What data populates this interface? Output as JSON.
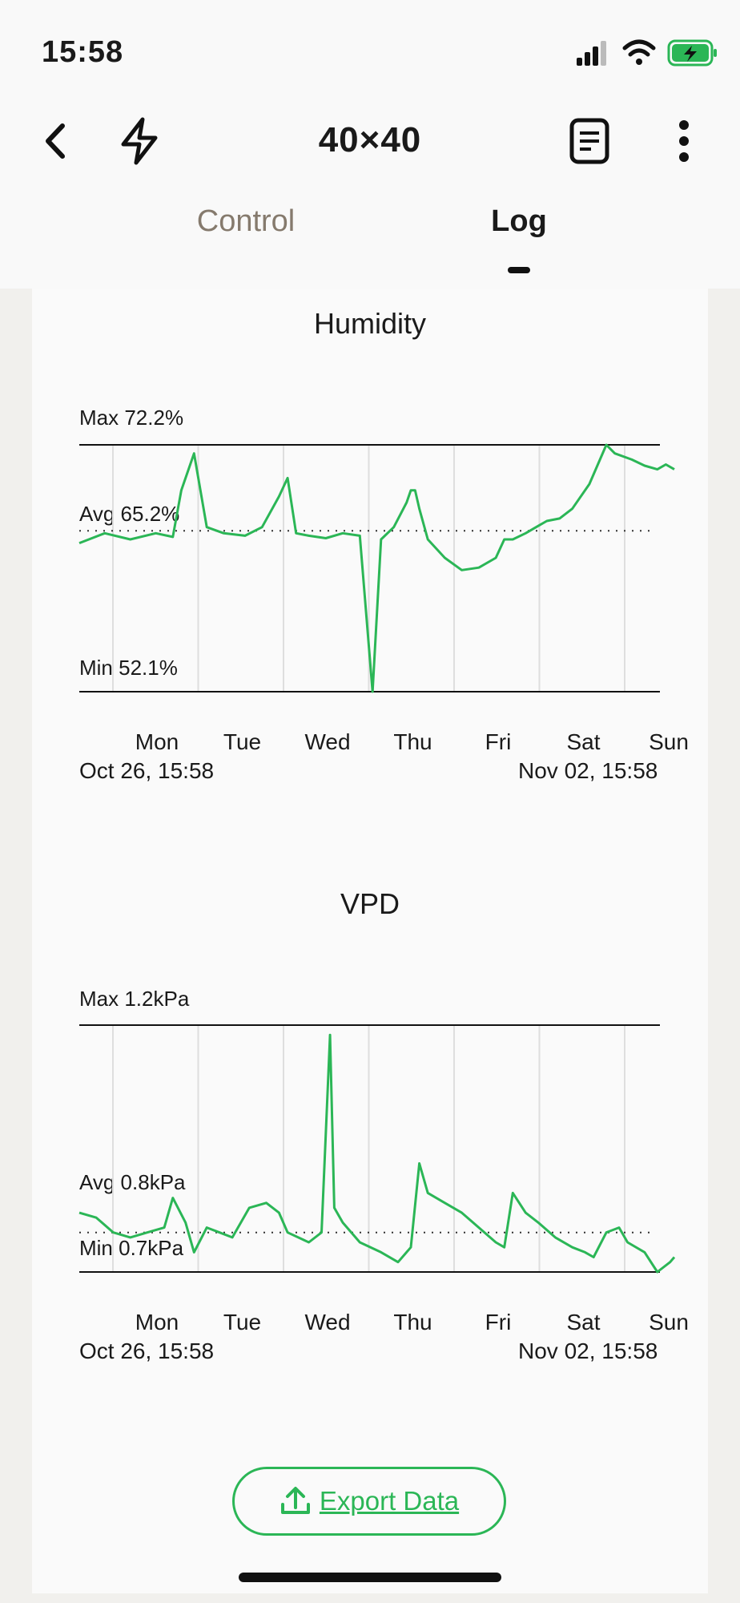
{
  "status": {
    "time": "15:58"
  },
  "header": {
    "title": "40×40"
  },
  "tabs": [
    {
      "label": "Control"
    },
    {
      "label": "Log"
    }
  ],
  "colors": {
    "line": "#2bb656",
    "accent": "#2bb656",
    "tab_inactive": "#857a6d"
  },
  "icons": [
    "back-chevron-icon",
    "lightning-icon",
    "document-icon",
    "more-vertical-icon",
    "upload-icon",
    "signal-icon",
    "wifi-icon",
    "battery-charging-icon"
  ],
  "chart_data": [
    {
      "type": "line",
      "title": "Humidity",
      "max_label": "Max 72.2%",
      "avg_label": "Avg 65.2%",
      "min_label": "Min 52.1%",
      "ylim": [
        52.1,
        72.2
      ],
      "avg": 65.2,
      "days": [
        "Mon",
        "Tue",
        "Wed",
        "Thu",
        "Fri",
        "Sat",
        "Sun"
      ],
      "start_label": "Oct 26, 15:58",
      "end_label": "Nov 02, 15:58",
      "x": [
        0,
        0.3,
        0.6,
        0.9,
        1.1,
        1.2,
        1.35,
        1.5,
        1.7,
        1.95,
        2.15,
        2.35,
        2.45,
        2.55,
        2.7,
        2.9,
        3.1,
        3.3,
        3.45,
        3.55,
        3.7,
        3.85,
        3.9,
        3.95,
        4.0,
        4.1,
        4.3,
        4.5,
        4.7,
        4.9,
        5.0,
        5.1,
        5.25,
        5.4,
        5.5,
        5.65,
        5.8,
        6.0,
        6.2,
        6.3,
        6.5,
        6.65,
        6.8,
        6.9,
        7.0
      ],
      "series": [
        {
          "values": [
            64.2,
            65,
            64.5,
            65,
            64.7,
            68.5,
            71.5,
            65.5,
            65,
            64.8,
            65.5,
            68,
            69.5,
            65,
            64.8,
            64.6,
            65,
            64.8,
            52.1,
            64.5,
            65.5,
            67.5,
            68.5,
            68.5,
            67,
            64.5,
            63,
            62,
            62.2,
            63,
            64.5,
            64.5,
            65,
            65.6,
            66,
            66.2,
            67,
            69,
            72.2,
            71.5,
            71,
            70.5,
            70.2,
            70.6,
            70.2
          ]
        }
      ]
    },
    {
      "type": "line",
      "title": "VPD",
      "max_label": "Max 1.2kPa",
      "avg_label": "Avg 0.8kPa",
      "min_label": "Min 0.7kPa",
      "ylim": [
        0.7,
        1.2
      ],
      "avg": 0.78,
      "days": [
        "Mon",
        "Tue",
        "Wed",
        "Thu",
        "Fri",
        "Sat",
        "Sun"
      ],
      "start_label": "Oct 26, 15:58",
      "end_label": "Nov 02, 15:58",
      "x": [
        0,
        0.2,
        0.4,
        0.6,
        0.8,
        1.0,
        1.1,
        1.25,
        1.35,
        1.5,
        1.65,
        1.8,
        2.0,
        2.2,
        2.35,
        2.45,
        2.7,
        2.85,
        2.95,
        3.0,
        3.1,
        3.3,
        3.55,
        3.75,
        3.9,
        4.0,
        4.1,
        4.3,
        4.5,
        4.7,
        4.9,
        5.0,
        5.1,
        5.25,
        5.4,
        5.6,
        5.8,
        5.95,
        6.05,
        6.2,
        6.35,
        6.45,
        6.65,
        6.8,
        6.95,
        7.0
      ],
      "series": [
        {
          "values": [
            0.82,
            0.81,
            0.78,
            0.77,
            0.78,
            0.79,
            0.85,
            0.8,
            0.74,
            0.79,
            0.78,
            0.77,
            0.83,
            0.84,
            0.82,
            0.78,
            0.76,
            0.78,
            1.18,
            0.83,
            0.8,
            0.76,
            0.74,
            0.72,
            0.75,
            0.92,
            0.86,
            0.84,
            0.82,
            0.79,
            0.76,
            0.75,
            0.86,
            0.82,
            0.8,
            0.77,
            0.75,
            0.74,
            0.73,
            0.78,
            0.79,
            0.76,
            0.74,
            0.7,
            0.72,
            0.73
          ]
        }
      ]
    }
  ],
  "actions": {
    "export_label": "Export Data"
  }
}
